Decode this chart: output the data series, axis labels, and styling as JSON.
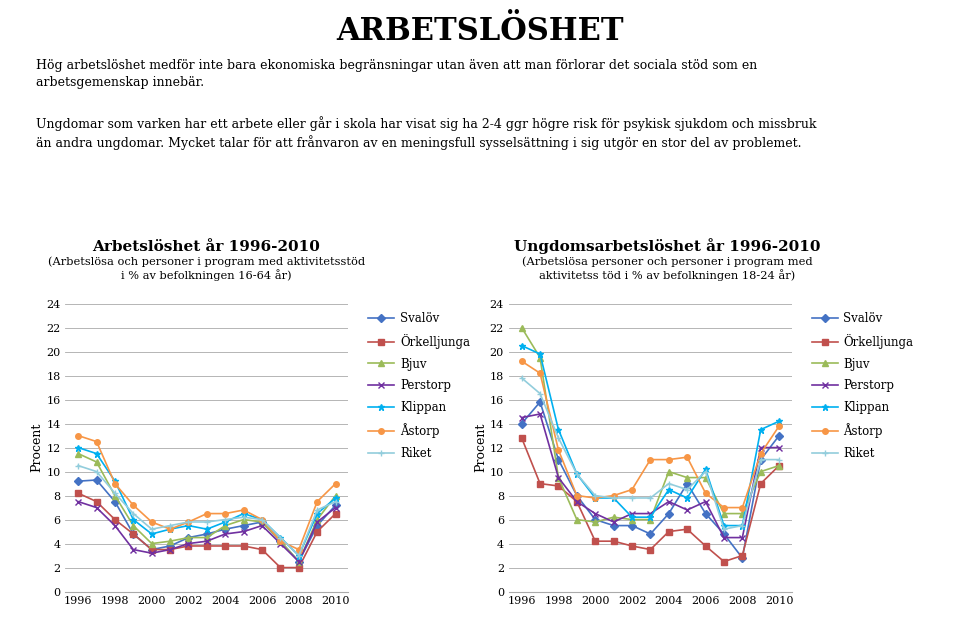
{
  "title": "ARBETSLÖSHET",
  "text1": "Hög arbetslöshet medför inte bara ekonomiska begränsningar utan även att man förlorar det sociala stöd som en\narbetsgemenskap innebär.",
  "text2": "Ungdomar som varken har ett arbete eller går i skola har visat sig ha 2-4 ggr högre risk för psykisk sjukdom och missbruk\nän andra ungdomar. Mycket talar för att frånvaron av en meningsfull sysselsättning i sig utgör en stor del av problemet.",
  "chart1_title": "Arbetslöshet år 1996-2010",
  "chart1_subtitle": "(Arbetslösa och personer i program med aktivitetsstöd\ni % av befolkningen 16-64 år)",
  "chart2_title": "Ungdomsarbetslöshet år 1996-2010",
  "chart2_subtitle": "(Arbetslösa personer och personer i program med\naktivitetss töd i % av befolkningen 18-24 år)",
  "ylabel": "Procent",
  "years": [
    1996,
    1997,
    1998,
    1999,
    2000,
    2001,
    2002,
    2003,
    2004,
    2005,
    2006,
    2007,
    2008,
    2009,
    2010
  ],
  "chart1": {
    "Svalöv": [
      9.2,
      9.3,
      7.5,
      4.8,
      3.5,
      3.8,
      4.5,
      4.8,
      5.2,
      5.5,
      5.8,
      4.2,
      2.5,
      5.5,
      7.2
    ],
    "Örkelljunga": [
      8.2,
      7.5,
      6.0,
      4.8,
      3.5,
      3.5,
      3.8,
      3.8,
      3.8,
      3.8,
      3.5,
      2.0,
      2.0,
      5.0,
      6.5
    ],
    "Bjuv": [
      11.5,
      10.8,
      8.0,
      5.5,
      4.0,
      4.2,
      4.5,
      4.5,
      5.5,
      6.0,
      5.8,
      4.2,
      2.5,
      6.0,
      8.0
    ],
    "Perstorp": [
      7.5,
      7.0,
      5.5,
      3.5,
      3.2,
      3.5,
      4.0,
      4.2,
      4.8,
      5.0,
      5.5,
      4.0,
      2.5,
      5.8,
      7.0
    ],
    "Klippan": [
      12.0,
      11.5,
      9.2,
      6.0,
      4.8,
      5.2,
      5.5,
      5.2,
      5.8,
      6.5,
      6.0,
      4.5,
      3.0,
      6.5,
      7.8
    ],
    "Åstorp": [
      13.0,
      12.5,
      9.0,
      7.2,
      5.8,
      5.2,
      5.8,
      6.5,
      6.5,
      6.8,
      6.0,
      4.2,
      3.5,
      7.5,
      9.0
    ],
    "Riket": [
      10.5,
      10.0,
      8.2,
      6.5,
      5.2,
      5.5,
      5.8,
      5.8,
      6.0,
      6.2,
      6.0,
      4.5,
      3.0,
      6.8,
      7.5
    ]
  },
  "chart2": {
    "Svalöv": [
      14.0,
      15.8,
      11.0,
      8.0,
      6.0,
      5.5,
      5.5,
      4.8,
      6.5,
      9.0,
      6.5,
      4.8,
      2.8,
      11.0,
      13.0
    ],
    "Örkelljunga": [
      12.8,
      9.0,
      8.8,
      7.5,
      4.2,
      4.2,
      3.8,
      3.5,
      5.0,
      5.2,
      3.8,
      2.5,
      3.0,
      9.0,
      10.5
    ],
    "Bjuv": [
      22.0,
      19.5,
      9.5,
      6.0,
      5.8,
      6.2,
      6.0,
      6.0,
      10.0,
      9.5,
      9.5,
      6.5,
      6.5,
      10.0,
      10.5
    ],
    "Perstorp": [
      14.5,
      14.8,
      9.5,
      7.5,
      6.5,
      5.8,
      6.5,
      6.5,
      7.5,
      6.8,
      7.5,
      4.5,
      4.5,
      12.0,
      12.0
    ],
    "Klippan": [
      20.5,
      19.8,
      13.5,
      9.8,
      7.8,
      7.8,
      6.2,
      6.2,
      8.5,
      7.8,
      10.2,
      5.5,
      5.5,
      13.5,
      14.2
    ],
    "Åstorp": [
      19.2,
      18.2,
      11.8,
      8.0,
      7.8,
      8.0,
      8.5,
      11.0,
      11.0,
      11.2,
      8.2,
      7.0,
      7.0,
      11.5,
      13.8
    ],
    "Riket": [
      17.8,
      16.5,
      12.8,
      9.8,
      8.0,
      7.8,
      7.8,
      7.8,
      9.0,
      8.5,
      10.0,
      5.2,
      5.5,
      11.0,
      11.0
    ]
  },
  "series_styles": {
    "Svalöv": {
      "color": "#4472C4",
      "marker": "D"
    },
    "Örkelljunga": {
      "color": "#C0504D",
      "marker": "s"
    },
    "Bjuv": {
      "color": "#9BBB59",
      "marker": "^"
    },
    "Perstorp": {
      "color": "#7030A0",
      "marker": "x"
    },
    "Klippan": {
      "color": "#00B0F0",
      "marker": "*"
    },
    "Åstorp": {
      "color": "#F79646",
      "marker": "o"
    },
    "Riket": {
      "color": "#92CDDC",
      "marker": "+"
    }
  },
  "ylim": [
    0,
    24
  ],
  "yticks": [
    0,
    2,
    4,
    6,
    8,
    10,
    12,
    14,
    16,
    18,
    20,
    22,
    24
  ],
  "xticks": [
    1996,
    1998,
    2000,
    2002,
    2004,
    2006,
    2008,
    2010
  ]
}
